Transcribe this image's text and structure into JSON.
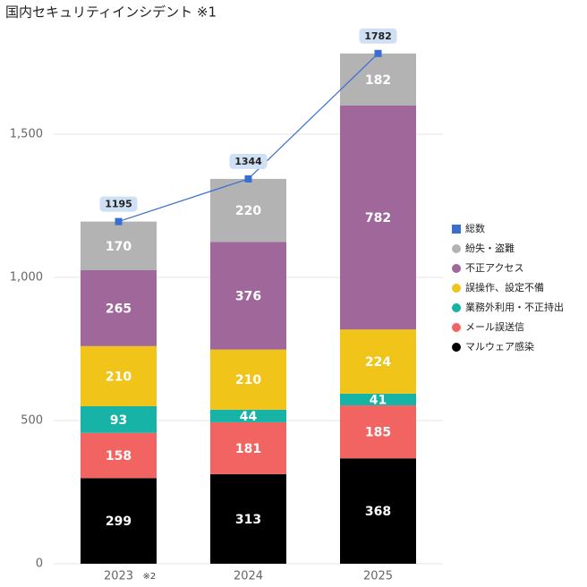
{
  "chart_data": {
    "type": "bar",
    "stacked": true,
    "title": "国内セキュリティインシデント ※1",
    "categories": [
      "2023",
      "2024",
      "2025"
    ],
    "annotations": [
      "※2"
    ],
    "series": [
      {
        "name": "マルウェア感染",
        "color": "#000000",
        "values": [
          299,
          313,
          368
        ]
      },
      {
        "name": "メール誤送信",
        "color": "#f26461",
        "values": [
          158,
          181,
          185
        ]
      },
      {
        "name": "業務外利用・不正持出",
        "color": "#17b3a6",
        "values": [
          93,
          44,
          41
        ]
      },
      {
        "name": "誤操作、設定不備",
        "color": "#f0c419",
        "values": [
          210,
          210,
          224
        ]
      },
      {
        "name": "不正アクセス",
        "color": "#a0679a",
        "values": [
          265,
          376,
          782
        ]
      },
      {
        "name": "紛失・盗難",
        "color": "#b3b3b3",
        "values": [
          170,
          220,
          182
        ]
      },
      {
        "name": "総数",
        "color": "#3a6fd0",
        "type": "line",
        "values": [
          1195,
          1344,
          1782
        ]
      }
    ],
    "ylim": [
      0,
      1900
    ],
    "yticks": [
      0,
      500,
      {
        "value": 1000,
        "label": "1,000"
      },
      {
        "value": 1500,
        "label": "1,500"
      }
    ],
    "grid": true,
    "legend": "right"
  }
}
